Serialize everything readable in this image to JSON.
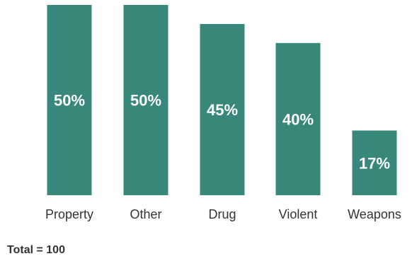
{
  "colors": {
    "bar": "#37877b",
    "value_text": "#ffffff",
    "label_text": "#333333"
  },
  "chart_data": {
    "type": "bar",
    "categories": [
      "Property",
      "Other",
      "Drug",
      "Violent",
      "Weapons"
    ],
    "values": [
      50,
      50,
      45,
      40,
      17
    ],
    "value_labels": [
      "50%",
      "50%",
      "45%",
      "40%",
      "17%"
    ],
    "ylim": [
      0,
      50
    ],
    "grid": false,
    "legend": "none",
    "note": "Total = 100"
  }
}
